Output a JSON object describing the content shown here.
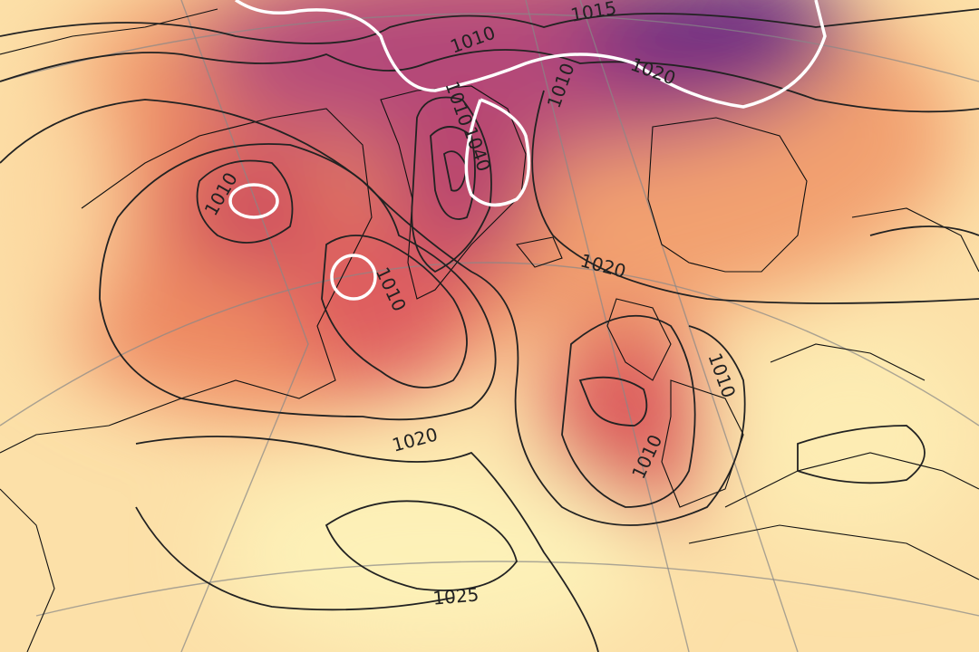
{
  "map": {
    "contour_labels": [
      "1015",
      "1010",
      "1020",
      "1010",
      "1040",
      "1010",
      "1010",
      "1010",
      "1020",
      "1010",
      "1010",
      "1020",
      "1025"
    ]
  }
}
